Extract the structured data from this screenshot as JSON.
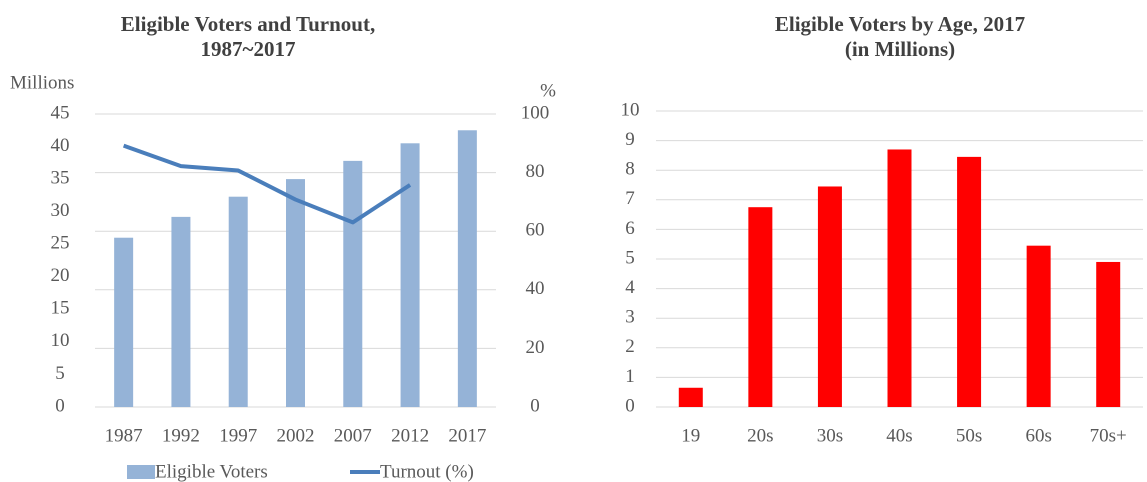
{
  "chart_data": [
    {
      "type": "combo",
      "title": [
        "Eligible Voters and Turnout,",
        "1987~2017"
      ],
      "y_label": "Millions",
      "y2_label": "%",
      "categories": [
        "1987",
        "1992",
        "1997",
        "2002",
        "2007",
        "2012",
        "2017"
      ],
      "series": [
        {
          "name": "Eligible Voters",
          "type": "bar",
          "color": "#95b3d7",
          "values": [
            26.0,
            29.2,
            32.3,
            35.0,
            37.8,
            40.5,
            42.5
          ]
        },
        {
          "name": "Turnout (%)",
          "type": "line",
          "axis": "y2",
          "color": "#4a7ebb",
          "values": [
            89.2,
            82.2,
            80.7,
            70.8,
            63.0,
            75.8,
            null
          ]
        }
      ],
      "ylim": [
        0,
        45
      ],
      "yticks": [
        0,
        5,
        10,
        15,
        20,
        25,
        30,
        35,
        40,
        45
      ],
      "y2lim": [
        0,
        100
      ],
      "y2ticks": [
        0,
        20,
        40,
        60,
        80,
        100
      ],
      "grid": true,
      "legend": "bottom"
    },
    {
      "type": "bar",
      "title": [
        "Eligible Voters by Age, 2017",
        "(in Millions)"
      ],
      "categories": [
        "19",
        "20s",
        "30s",
        "40s",
        "50s",
        "60s",
        "70s+"
      ],
      "values": [
        0.65,
        6.75,
        7.45,
        8.7,
        8.45,
        5.45,
        4.9
      ],
      "color": "#ff0000",
      "ylim": [
        0,
        10
      ],
      "yticks": [
        0,
        1,
        2,
        3,
        4,
        5,
        6,
        7,
        8,
        9,
        10
      ],
      "grid": true
    }
  ]
}
